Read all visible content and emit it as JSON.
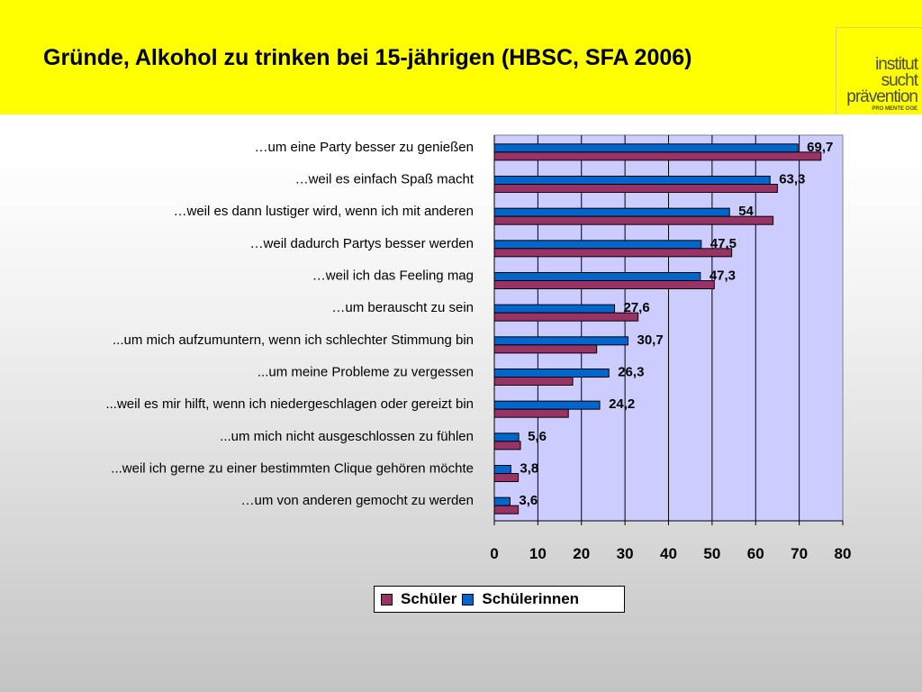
{
  "header": {
    "title": "Gründe, Alkohol zu trinken bei 15-jährigen (HBSC, SFA 2006)",
    "logo_lines": [
      "institut",
      "sucht",
      "prävention",
      "PRO MENTE OOE"
    ]
  },
  "colors": {
    "banner": "#ffff00",
    "plot_background": "#ccccff",
    "schueler": "#993366",
    "schuelerinnen": "#0066cc"
  },
  "chart_data": {
    "type": "bar",
    "orientation": "horizontal",
    "title": "Gründe, Alkohol zu trinken bei 15-jährigen (HBSC, SFA 2006)",
    "categories": [
      "…um eine Party besser zu genießen",
      "…weil es einfach Spaß macht",
      "…weil es dann lustiger wird, wenn ich mit anderen",
      "…weil dadurch Partys besser werden",
      "…weil ich das Feeling mag",
      "…um berauscht zu sein",
      "...um mich aufzumuntern, wenn ich schlechter Stimmung bin",
      "...um meine Probleme zu vergessen",
      "...weil es mir hilft, wenn ich niedergeschlagen oder gereizt bin",
      "...um mich nicht ausgeschlossen zu fühlen",
      "...weil ich gerne zu einer bestimmten Clique gehören möchte",
      "…um von anderen gemocht zu werden"
    ],
    "series": [
      {
        "name": "Schülerinnen",
        "values": [
          69.7,
          63.3,
          54,
          47.5,
          47.3,
          27.6,
          30.7,
          26.3,
          24.2,
          5.6,
          3.8,
          3.6
        ]
      },
      {
        "name": "Schüler",
        "values": [
          75,
          65,
          64,
          54.5,
          50.5,
          33,
          23.5,
          18,
          17,
          6,
          5.5,
          5.5
        ]
      }
    ],
    "value_labels": [
      "69,7",
      "63,3",
      "54",
      "47,5",
      "47,3",
      "27,6",
      "30,7",
      "26,3",
      "24,2",
      "5,6",
      "3,8",
      "3,6"
    ],
    "xlim": [
      0,
      80
    ],
    "xticks": [
      "0",
      "10",
      "20",
      "30",
      "40",
      "50",
      "60",
      "70",
      "80"
    ],
    "grid": "vertical",
    "legend_position": "bottom",
    "legend": [
      "Schüler",
      "Schülerinnen"
    ]
  }
}
